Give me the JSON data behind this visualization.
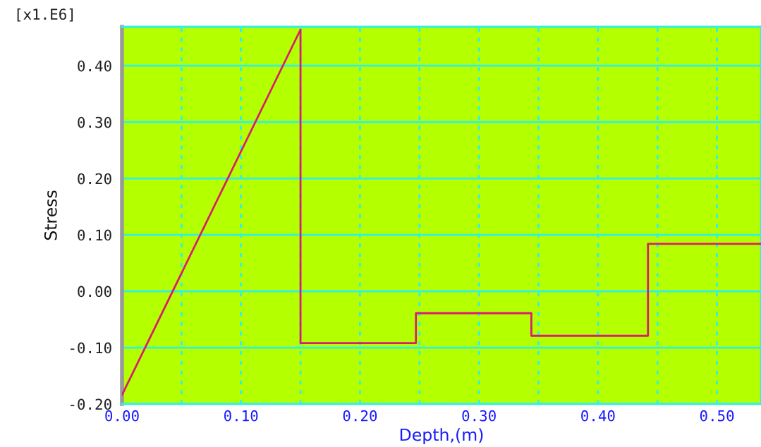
{
  "chart_data": {
    "type": "line",
    "xlabel": "Depth,(m)",
    "ylabel": "Stress",
    "annotations": [
      "[x1.E6]"
    ],
    "series": [
      {
        "x": [
          0,
          0.15,
          0.15,
          0.247,
          0.247,
          0.344,
          0.344,
          0.442,
          0.442,
          0.537
        ],
        "values": [
          -0.184,
          0.464,
          -0.092,
          -0.092,
          -0.039,
          -0.039,
          -0.079,
          -0.079,
          0.084,
          0.084
        ],
        "color": "#d81e6e"
      }
    ],
    "xlim": [
      0,
      0.537
    ],
    "ylim": [
      -0.2,
      0.469
    ],
    "xticks": [
      {
        "value": 0,
        "label": "0.00"
      },
      {
        "value": 0.05,
        "label": null
      },
      {
        "value": 0.1,
        "label": "0.10"
      },
      {
        "value": 0.15,
        "label": null
      },
      {
        "value": 0.2,
        "label": "0.20"
      },
      {
        "value": 0.25,
        "label": null
      },
      {
        "value": 0.3,
        "label": "0.30"
      },
      {
        "value": 0.35,
        "label": null
      },
      {
        "value": 0.4,
        "label": "0.40"
      },
      {
        "value": 0.45,
        "label": null
      },
      {
        "value": 0.5,
        "label": "0.50"
      }
    ],
    "yticks": [
      {
        "value": -0.2,
        "label": "-0.20"
      },
      {
        "value": -0.1,
        "label": "-0.10"
      },
      {
        "value": 0,
        "label": "0.00"
      },
      {
        "value": 0.1,
        "label": "0.10"
      },
      {
        "value": 0.2,
        "label": "0.20"
      },
      {
        "value": 0.3,
        "label": "0.30"
      },
      {
        "value": 0.4,
        "label": "0.40"
      }
    ],
    "grid": true,
    "marker": "none",
    "line_style": "solid"
  }
}
